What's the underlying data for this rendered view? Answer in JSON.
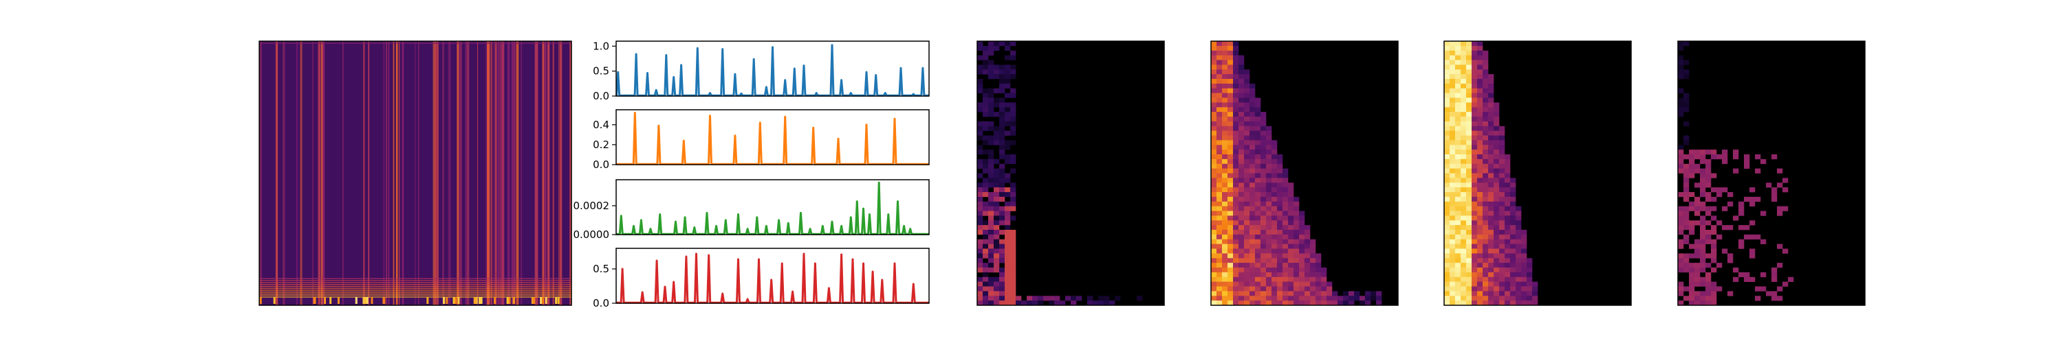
{
  "chart_data": [
    {
      "type": "heatmap",
      "title": "",
      "xlabel": "",
      "ylabel": "",
      "colormap": "magma",
      "description_pattern": "dense vertical onset stripes across time, energy concentrated at low rows"
    },
    {
      "type": "line",
      "title": "",
      "xlabel": "",
      "ylabel": "",
      "color": "#1f77b4",
      "yticks": [
        "0.0",
        "0.5",
        "1.0"
      ],
      "ylim": [
        0,
        1.1
      ],
      "x": [
        3,
        32,
        50,
        64,
        80,
        92,
        104,
        130,
        150,
        170,
        190,
        200,
        220,
        240,
        250,
        270,
        285,
        300,
        320,
        345,
        360,
        375,
        400,
        415,
        430,
        455,
        475,
        490
      ],
      "values": [
        0.48,
        0.84,
        0.46,
        0.12,
        0.82,
        0.38,
        0.62,
        0.96,
        0.06,
        0.94,
        0.44,
        0.05,
        0.74,
        0.18,
        0.98,
        0.32,
        0.55,
        0.61,
        0.06,
        1.02,
        0.32,
        0.06,
        0.48,
        0.42,
        0.06,
        0.56,
        0.04,
        0.56
      ]
    },
    {
      "type": "line",
      "title": "",
      "xlabel": "",
      "ylabel": "",
      "color": "#ff7f0e",
      "yticks": [
        "0.0",
        "0.2",
        "0.4"
      ],
      "ylim": [
        0,
        0.55
      ],
      "x": [
        30,
        68,
        108,
        150,
        190,
        230,
        270,
        315,
        355,
        400,
        445
      ],
      "values": [
        0.52,
        0.39,
        0.24,
        0.49,
        0.29,
        0.42,
        0.48,
        0.37,
        0.26,
        0.4,
        0.46
      ]
    },
    {
      "type": "line",
      "title": "",
      "xlabel": "",
      "ylabel": "",
      "color": "#2ca02c",
      "yticks": [
        "0.0000",
        "0.0002"
      ],
      "ylim": [
        0,
        0.00038
      ],
      "x": [
        8,
        28,
        40,
        55,
        70,
        95,
        110,
        125,
        145,
        160,
        175,
        195,
        210,
        225,
        240,
        260,
        275,
        295,
        310,
        330,
        345,
        360,
        375,
        385,
        395,
        405,
        420,
        435,
        450,
        460,
        470
      ],
      "values": [
        0.00013,
        6e-05,
        0.0001,
        4e-05,
        0.00014,
        9e-05,
        0.00012,
        5e-05,
        0.00015,
        6e-05,
        0.0001,
        0.00014,
        4e-05,
        0.00012,
        6e-05,
        0.0001,
        8e-05,
        0.00015,
        4e-05,
        6e-05,
        9e-05,
        6e-05,
        0.00012,
        0.00023,
        0.00018,
        0.00014,
        0.00036,
        0.00014,
        0.00023,
        6e-05,
        4e-05
      ]
    },
    {
      "type": "line",
      "title": "",
      "xlabel": "",
      "ylabel": "",
      "color": "#d62728",
      "yticks": [
        "0.0",
        "0.5"
      ],
      "ylim": [
        0,
        0.8
      ],
      "x": [
        10,
        42,
        65,
        78,
        92,
        112,
        128,
        148,
        170,
        195,
        210,
        228,
        248,
        265,
        282,
        300,
        318,
        340,
        360,
        378,
        395,
        410,
        425,
        445,
        475
      ],
      "values": [
        0.5,
        0.16,
        0.62,
        0.24,
        0.31,
        0.68,
        0.72,
        0.7,
        0.14,
        0.64,
        0.06,
        0.64,
        0.34,
        0.58,
        0.17,
        0.72,
        0.58,
        0.22,
        0.71,
        0.64,
        0.58,
        0.46,
        0.34,
        0.58,
        0.28
      ]
    },
    {
      "type": "heatmap",
      "title": "",
      "xlabel": "",
      "ylabel": "",
      "colormap": "magma",
      "description_pattern": "mostly dark; faint purple energy near the left edge and bottom rows"
    },
    {
      "type": "heatmap",
      "title": "",
      "xlabel": "",
      "ylabel": "",
      "colormap": "magma",
      "description_pattern": "bright orange/pink energy on the left columns, spreading right toward lower rows"
    },
    {
      "type": "heatmap",
      "title": "",
      "xlabel": "",
      "ylabel": "",
      "colormap": "magma",
      "description_pattern": "very bright yellow/orange band in the left columns, decaying to the right"
    },
    {
      "type": "heatmap",
      "title": "",
      "xlabel": "",
      "ylabel": "",
      "colormap": "magma",
      "description_pattern": "mostly dark with faint purple speckle concentrated in the lower half"
    }
  ]
}
